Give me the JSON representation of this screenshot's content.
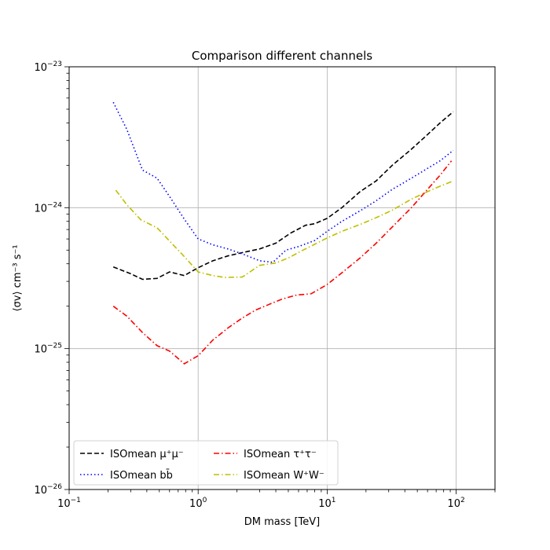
{
  "chart_data": {
    "type": "line",
    "title": "Comparison different channels",
    "xlabel": "DM mass [TeV]",
    "ylabel": "⟨σv⟩ cm⁻³ s⁻¹",
    "x_scale": "log",
    "y_scale": "log",
    "xlim": [
      0.1,
      200
    ],
    "ylim": [
      1e-26,
      1e-23
    ],
    "grid": true,
    "legend_position": "lower-left",
    "x_ticks": [
      {
        "value": 0.1,
        "base": "10",
        "exp": "−1"
      },
      {
        "value": 1,
        "base": "10",
        "exp": "0"
      },
      {
        "value": 10,
        "base": "10",
        "exp": "1"
      },
      {
        "value": 100,
        "base": "10",
        "exp": "2"
      }
    ],
    "y_ticks": [
      {
        "value": 1e-26,
        "base": "10",
        "exp": "−26"
      },
      {
        "value": 1e-25,
        "base": "10",
        "exp": "−25"
      },
      {
        "value": 1e-24,
        "base": "10",
        "exp": "−24"
      },
      {
        "value": 1e-23,
        "base": "10",
        "exp": "−23"
      }
    ],
    "series": [
      {
        "name": "ISOmean μ⁺μ⁻",
        "color": "#000000",
        "dash": "dashed",
        "x": [
          0.22,
          0.3,
          0.37,
          0.48,
          0.6,
          0.78,
          1.0,
          1.3,
          1.7,
          2.2,
          3.0,
          4.0,
          5.2,
          6.8,
          8.0,
          10.0,
          13.0,
          18.0,
          24.0,
          32.0,
          45.0,
          60.0,
          75.0,
          95.0
        ],
        "y": [
          3.8e-25,
          3.4e-25,
          3.1e-25,
          3.15e-25,
          3.5e-25,
          3.3e-25,
          3.75e-25,
          4.2e-25,
          4.55e-25,
          4.8e-25,
          5.1e-25,
          5.6e-25,
          6.6e-25,
          7.5e-25,
          7.7e-25,
          8.4e-25,
          1e-24,
          1.3e-24,
          1.55e-24,
          2e-24,
          2.6e-24,
          3.3e-24,
          4e-24,
          4.8e-24
        ]
      },
      {
        "name": "ISOmean bb̄",
        "color": "#0000ff",
        "dash": "dotted",
        "x": [
          0.22,
          0.28,
          0.37,
          0.48,
          0.6,
          0.78,
          1.0,
          1.3,
          1.7,
          2.2,
          3.0,
          3.8,
          4.8,
          6.0,
          8.0,
          10.0,
          13.0,
          18.0,
          24.0,
          32.0,
          45.0,
          60.0,
          75.0,
          95.0
        ],
        "y": [
          5.6e-24,
          3.6e-24,
          1.85e-24,
          1.62e-24,
          1.2e-24,
          8.3e-25,
          6e-25,
          5.45e-25,
          5.1e-25,
          4.7e-25,
          4.2e-25,
          4.1e-25,
          5e-25,
          5.3e-25,
          5.85e-25,
          6.8e-25,
          8e-25,
          9.5e-25,
          1.12e-24,
          1.35e-24,
          1.62e-24,
          1.9e-24,
          2.15e-24,
          2.55e-24
        ]
      },
      {
        "name": "ISOmean τ⁺τ⁻",
        "color": "#ff0000",
        "dash": "dashdot",
        "x": [
          0.22,
          0.28,
          0.37,
          0.48,
          0.6,
          0.78,
          1.0,
          1.3,
          1.7,
          2.2,
          2.8,
          3.5,
          4.5,
          5.8,
          7.5,
          10.0,
          13.0,
          18.0,
          24.0,
          32.0,
          45.0,
          60.0,
          75.0,
          92.0
        ],
        "y": [
          2e-25,
          1.7e-25,
          1.3e-25,
          1.05e-25,
          9.6e-26,
          7.8e-26,
          8.9e-26,
          1.15e-25,
          1.4e-25,
          1.65e-25,
          1.88e-25,
          2.05e-25,
          2.25e-25,
          2.4e-25,
          2.45e-25,
          2.85e-25,
          3.45e-25,
          4.4e-25,
          5.6e-25,
          7.3e-25,
          1e-24,
          1.35e-24,
          1.7e-24,
          2.15e-24
        ]
      },
      {
        "name": "ISOmean W⁺W⁻",
        "color": "#bfbf00",
        "dash": "dashdot",
        "x": [
          0.23,
          0.28,
          0.36,
          0.48,
          0.6,
          0.78,
          1.0,
          1.3,
          1.6,
          2.2,
          3.0,
          4.0,
          5.0,
          6.5,
          8.0,
          10.0,
          13.0,
          18.0,
          24.0,
          32.0,
          45.0,
          60.0,
          75.0,
          95.0
        ],
        "y": [
          1.33e-24,
          1.05e-24,
          8.2e-25,
          7.2e-25,
          5.8e-25,
          4.5e-25,
          3.5e-25,
          3.3e-25,
          3.2e-25,
          3.22e-25,
          3.9e-25,
          4.05e-25,
          4.4e-25,
          5e-25,
          5.5e-25,
          6.1e-25,
          6.8e-25,
          7.6e-25,
          8.5e-25,
          9.6e-25,
          1.15e-24,
          1.3e-24,
          1.42e-24,
          1.55e-24
        ]
      }
    ]
  }
}
